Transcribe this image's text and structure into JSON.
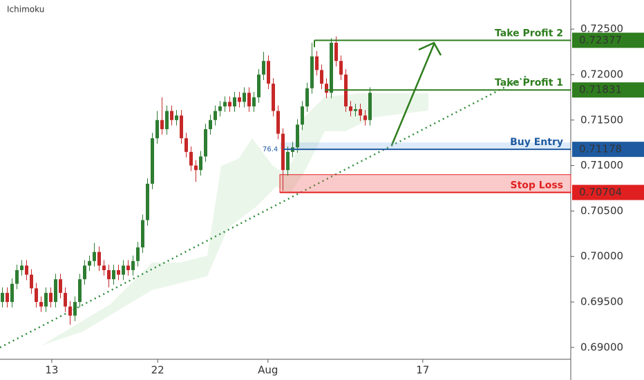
{
  "chart_data": {
    "type": "candlestick",
    "title": "Ichimoku",
    "ylim": [
      0.6887,
      0.7282
    ],
    "yticks": [
      {
        "value": 0.69,
        "label": "0.69000"
      },
      {
        "value": 0.695,
        "label": "0.69500"
      },
      {
        "value": 0.7,
        "label": "0.70000"
      },
      {
        "value": 0.705,
        "label": "0.70500"
      },
      {
        "value": 0.71,
        "label": "0.71000"
      },
      {
        "value": 0.715,
        "label": "0.71500"
      },
      {
        "value": 0.72,
        "label": "0.72000"
      },
      {
        "value": 0.725,
        "label": "0.72500"
      }
    ],
    "xlim": [
      0,
      118
    ],
    "xticks": [
      {
        "value": 10.7,
        "label": "13"
      },
      {
        "value": 32.6,
        "label": "22"
      },
      {
        "value": 55.4,
        "label": "Aug"
      },
      {
        "value": 87.4,
        "label": "17"
      }
    ],
    "up_color": "#2e7d32",
    "down_color": "#c62828",
    "open": [
      0.695,
      0.696,
      0.695,
      0.697,
      0.6985,
      0.699,
      0.698,
      0.6965,
      0.695,
      0.6945,
      0.696,
      0.695,
      0.6975,
      0.696,
      0.6945,
      0.6935,
      0.695,
      0.6975,
      0.699,
      0.6995,
      0.7005,
      0.699,
      0.6985,
      0.6975,
      0.6985,
      0.698,
      0.699,
      0.6985,
      0.6995,
      0.701,
      0.704,
      0.708,
      0.713,
      0.715,
      0.714,
      0.716,
      0.715,
      0.7155,
      0.713,
      0.7115,
      0.71,
      0.7095,
      0.711,
      0.714,
      0.715,
      0.716,
      0.7165,
      0.717,
      0.7165,
      0.7175,
      0.717,
      0.718,
      0.7165,
      0.7175,
      0.72,
      0.7215,
      0.719,
      0.716,
      0.7135,
      0.7095,
      0.7115,
      0.712,
      0.7145,
      0.7165,
      0.7185,
      0.722,
      0.7205,
      0.719,
      0.718,
      0.7235,
      0.7215,
      0.72,
      0.7165,
      0.716,
      0.7162,
      0.7155,
      0.715
    ],
    "high": [
      0.6966,
      0.6966,
      0.6976,
      0.6991,
      0.6996,
      0.6996,
      0.6986,
      0.6971,
      0.6956,
      0.6966,
      0.6966,
      0.6981,
      0.6981,
      0.6966,
      0.6951,
      0.6956,
      0.6981,
      0.6996,
      0.7001,
      0.7015,
      0.7011,
      0.6996,
      0.6991,
      0.6991,
      0.6991,
      0.6996,
      0.6996,
      0.7001,
      0.7016,
      0.7046,
      0.7086,
      0.7136,
      0.716,
      0.7175,
      0.7166,
      0.7166,
      0.7161,
      0.7161,
      0.7136,
      0.7121,
      0.7106,
      0.7116,
      0.7146,
      0.7156,
      0.7166,
      0.7171,
      0.7176,
      0.7176,
      0.7181,
      0.7181,
      0.7186,
      0.7186,
      0.7181,
      0.7206,
      0.7225,
      0.7221,
      0.7196,
      0.7166,
      0.7141,
      0.7121,
      0.7126,
      0.7151,
      0.7171,
      0.7191,
      0.7235,
      0.7226,
      0.7211,
      0.7196,
      0.724,
      0.7242,
      0.7221,
      0.7206,
      0.7171,
      0.7168,
      0.7168,
      0.7161,
      0.7186
    ],
    "low": [
      0.6944,
      0.6944,
      0.6944,
      0.6964,
      0.6979,
      0.6974,
      0.6959,
      0.6944,
      0.6939,
      0.6939,
      0.6944,
      0.6944,
      0.6954,
      0.6939,
      0.6925,
      0.6929,
      0.6944,
      0.6969,
      0.6984,
      0.6989,
      0.6984,
      0.6979,
      0.6966,
      0.6969,
      0.6974,
      0.6974,
      0.6979,
      0.6979,
      0.6989,
      0.7004,
      0.7034,
      0.7074,
      0.7124,
      0.7134,
      0.7134,
      0.7144,
      0.7144,
      0.7124,
      0.7109,
      0.7094,
      0.7082,
      0.7089,
      0.7104,
      0.7134,
      0.7144,
      0.7154,
      0.7159,
      0.7159,
      0.7159,
      0.7164,
      0.7164,
      0.7159,
      0.7159,
      0.7169,
      0.7194,
      0.7184,
      0.7154,
      0.7129,
      0.7072,
      0.7089,
      0.7109,
      0.7114,
      0.7139,
      0.7159,
      0.7179,
      0.7199,
      0.7184,
      0.7174,
      0.7174,
      0.7209,
      0.7194,
      0.7159,
      0.7154,
      0.7154,
      0.7149,
      0.7144,
      0.7144
    ],
    "close": [
      0.696,
      0.695,
      0.697,
      0.6985,
      0.699,
      0.698,
      0.6965,
      0.695,
      0.6945,
      0.696,
      0.695,
      0.6975,
      0.696,
      0.6945,
      0.6935,
      0.695,
      0.6975,
      0.699,
      0.6995,
      0.7005,
      0.699,
      0.6985,
      0.6975,
      0.6985,
      0.698,
      0.699,
      0.6985,
      0.6995,
      0.701,
      0.704,
      0.708,
      0.713,
      0.715,
      0.714,
      0.716,
      0.715,
      0.7155,
      0.713,
      0.7115,
      0.71,
      0.7095,
      0.711,
      0.714,
      0.715,
      0.716,
      0.7165,
      0.717,
      0.7165,
      0.7175,
      0.717,
      0.718,
      0.7165,
      0.7175,
      0.72,
      0.7215,
      0.719,
      0.716,
      0.7135,
      0.7095,
      0.7115,
      0.712,
      0.7145,
      0.7165,
      0.7185,
      0.722,
      0.7205,
      0.719,
      0.718,
      0.7235,
      0.7215,
      0.72,
      0.7165,
      0.716,
      0.7162,
      0.7155,
      0.715,
      0.718
    ],
    "levels": [
      {
        "label": "Take Profit 2",
        "value": 0.72377,
        "color": "#2e7d1e"
      },
      {
        "label": "Take Profit 1",
        "value": 0.71831,
        "color": "#2e7d1e"
      },
      {
        "label": "Buy Entry",
        "value": 0.71178,
        "color": "#1e5aa0"
      },
      {
        "label": "Stop Loss",
        "value": 0.70704,
        "color": "#e02020"
      }
    ],
    "fib_label": "76.4",
    "stop_zone_top": 0.709
  }
}
